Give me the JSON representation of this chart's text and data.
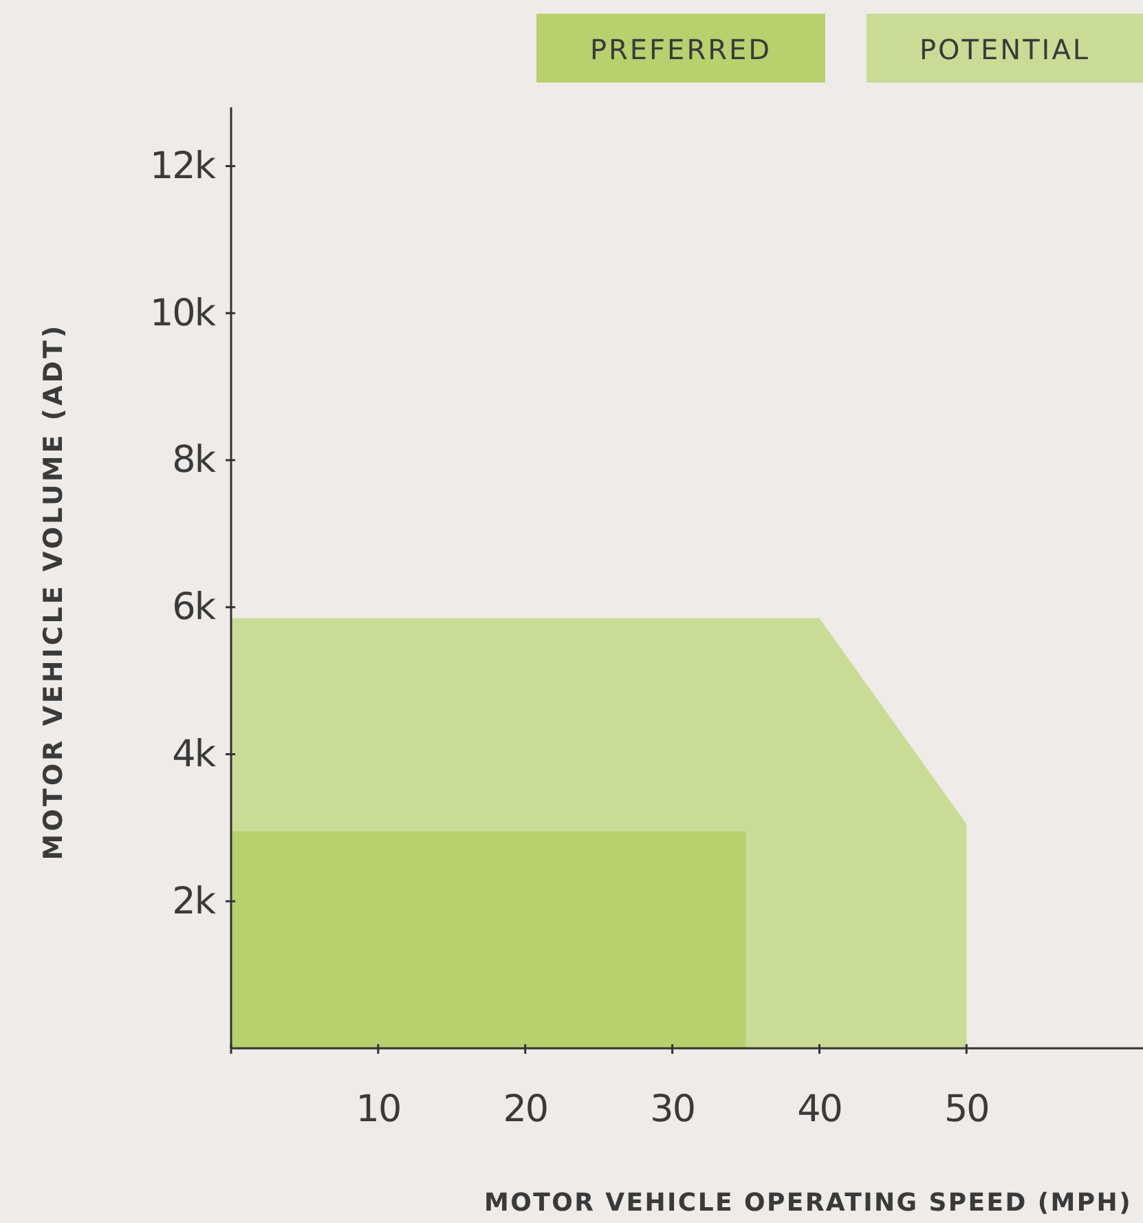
{
  "chart_data": {
    "type": "area",
    "xlabel": "MOTOR VEHICLE OPERATING SPEED (MPH)",
    "ylabel": "MOTOR VEHICLE VOLUME (ADT)",
    "xlim": [
      0,
      62
    ],
    "ylim": [
      0,
      12800
    ],
    "xticks": [
      {
        "value": 0,
        "label": null
      },
      10,
      20,
      30,
      40,
      50
    ],
    "yticks": [
      {
        "value": 2000,
        "label": "2k"
      },
      {
        "value": 4000,
        "label": "4k"
      },
      {
        "value": 6000,
        "label": "6k"
      },
      {
        "value": 8000,
        "label": "8k"
      },
      {
        "value": 10000,
        "label": "10k"
      },
      {
        "value": 12000,
        "label": "12k"
      }
    ],
    "legend": "top right",
    "series": [
      {
        "name": "POTENTIAL",
        "color": "#c9db95",
        "x": [
          0,
          40,
          50
        ],
        "values": [
          5850,
          5850,
          3050
        ]
      },
      {
        "name": "PREFERRED",
        "color": "#b8d06e",
        "x": [
          0,
          35
        ],
        "values": [
          2950,
          2950
        ]
      }
    ]
  }
}
